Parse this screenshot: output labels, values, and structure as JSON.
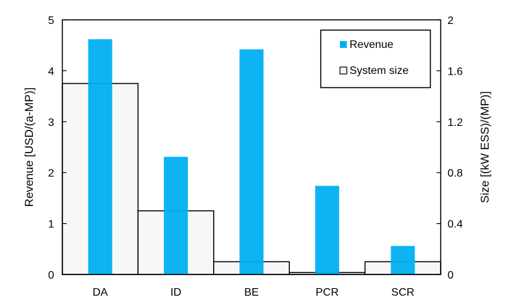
{
  "chart_data": {
    "type": "bar",
    "categories": [
      "DA",
      "ID",
      "BE",
      "PCR",
      "SCR"
    ],
    "series": [
      {
        "name": "Revenue",
        "axis": "left",
        "values": [
          4.62,
          2.31,
          4.42,
          1.74,
          0.56
        ],
        "color": "#00b0f0"
      },
      {
        "name": "System size",
        "axis": "right",
        "values": [
          1.5,
          0.5,
          0.1,
          0.015,
          0.1
        ],
        "fill": "#f7f7f7",
        "stroke": "#000000"
      }
    ],
    "ylabel": "Revenue [USD/(a-MP)]",
    "ylabel_right": "Size [(kW ESS)/(MP)]",
    "ylim": [
      0,
      5
    ],
    "ylim_right": [
      0,
      2
    ],
    "yticks": [
      "0",
      "1",
      "2",
      "3",
      "4",
      "5"
    ],
    "yticks_right": [
      "0",
      "0.4",
      "0.8",
      "1.2",
      "1.6",
      "2"
    ],
    "legend_position": "top-right",
    "grid": false
  }
}
